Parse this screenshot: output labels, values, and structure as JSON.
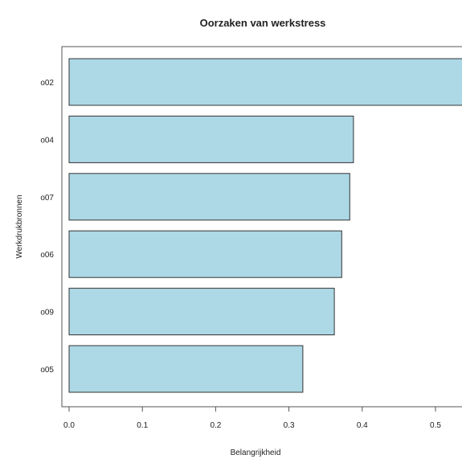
{
  "chart_data": {
    "type": "bar",
    "orientation": "horizontal",
    "title": "Oorzaken van werkstress",
    "xlabel": "Belangrijkheid",
    "ylabel": "Werkdrukbronnen",
    "categories": [
      "o02",
      "o04",
      "o07",
      "o06",
      "o09",
      "o05"
    ],
    "values": [
      0.56,
      0.388,
      0.383,
      0.372,
      0.362,
      0.319
    ],
    "xlim": [
      0,
      0.55
    ],
    "xticks": [
      "0.0",
      "0.1",
      "0.2",
      "0.3",
      "0.4",
      "0.5"
    ],
    "bar_color": "#add8e6",
    "bar_border_color": "#333333",
    "grid": false,
    "legend": "none"
  }
}
